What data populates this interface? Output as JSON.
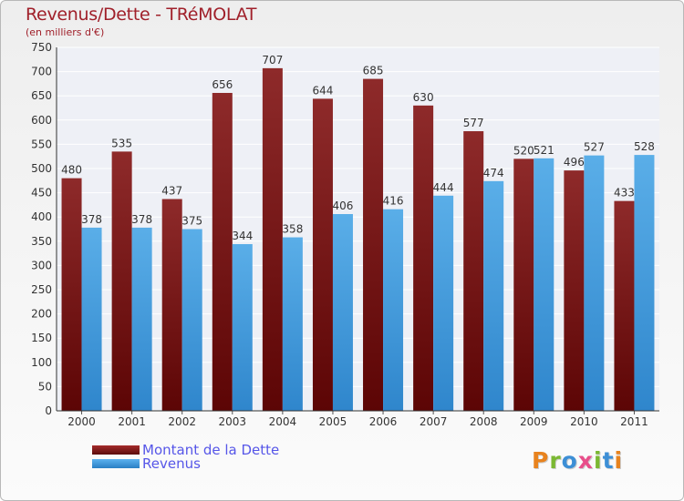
{
  "title": "Revenus/Dette - TRéMOLAT",
  "subtitle": "(en milliers d'€)",
  "logo_text": "Proxiti",
  "colors": {
    "debt": "#8b1a1a",
    "revenue": "#3d9be0",
    "title": "#a0202a",
    "legend_text": "#5656e8"
  },
  "chart_data": {
    "type": "bar",
    "title": "Revenus/Dette - TRéMOLAT",
    "subtitle": "(en milliers d'€)",
    "categories": [
      "2000",
      "2001",
      "2002",
      "2003",
      "2004",
      "2005",
      "2006",
      "2007",
      "2008",
      "2009",
      "2010",
      "2011"
    ],
    "series": [
      {
        "name": "Montant de la Dette",
        "values": [
          480,
          535,
          437,
          656,
          707,
          644,
          685,
          630,
          577,
          520,
          496,
          433
        ]
      },
      {
        "name": "Revenus",
        "values": [
          378,
          378,
          375,
          344,
          358,
          406,
          416,
          444,
          474,
          521,
          527,
          528
        ]
      }
    ],
    "ylim": [
      0,
      750
    ],
    "yticks": [
      0,
      50,
      100,
      150,
      200,
      250,
      300,
      350,
      400,
      450,
      500,
      550,
      600,
      650,
      700,
      750
    ],
    "grid": true,
    "legend_position": "bottom-left"
  }
}
